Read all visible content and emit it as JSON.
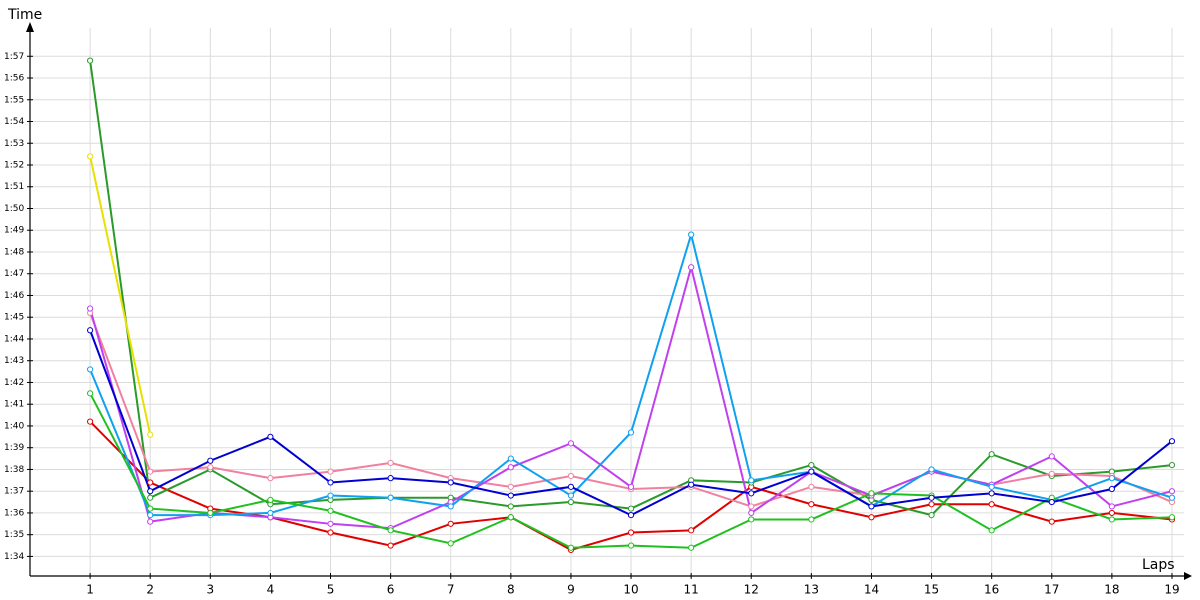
{
  "chart_data": {
    "type": "line",
    "xlabel": "Laps",
    "ylabel": "Time",
    "x": [
      1,
      2,
      3,
      4,
      5,
      6,
      7,
      8,
      9,
      10,
      11,
      12,
      13,
      14,
      15,
      16,
      17,
      18,
      19
    ],
    "xlim": [
      0,
      19.2
    ],
    "xticks": [
      1,
      2,
      3,
      4,
      5,
      6,
      7,
      8,
      9,
      10,
      11,
      12,
      13,
      14,
      15,
      16,
      17,
      18,
      19
    ],
    "ylim": [
      93.1,
      118.3
    ],
    "yticks": [
      {
        "value": 94,
        "label": "1:34"
      },
      {
        "value": 95,
        "label": "1:35"
      },
      {
        "value": 96,
        "label": "1:36"
      },
      {
        "value": 97,
        "label": "1:37"
      },
      {
        "value": 98,
        "label": "1:38"
      },
      {
        "value": 99,
        "label": "1:39"
      },
      {
        "value": 100,
        "label": "1:40"
      },
      {
        "value": 101,
        "label": "1:41"
      },
      {
        "value": 102,
        "label": "1:42"
      },
      {
        "value": 103,
        "label": "1:43"
      },
      {
        "value": 104,
        "label": "1:44"
      },
      {
        "value": 105,
        "label": "1:45"
      },
      {
        "value": 106,
        "label": "1:46"
      },
      {
        "value": 107,
        "label": "1:47"
      },
      {
        "value": 108,
        "label": "1:48"
      },
      {
        "value": 109,
        "label": "1:49"
      },
      {
        "value": 110,
        "label": "1:50"
      },
      {
        "value": 111,
        "label": "1:51"
      },
      {
        "value": 112,
        "label": "1:52"
      },
      {
        "value": 113,
        "label": "1:53"
      },
      {
        "value": 114,
        "label": "1:54"
      },
      {
        "value": 115,
        "label": "1:55"
      },
      {
        "value": 116,
        "label": "1:56"
      },
      {
        "value": 117,
        "label": "1:57"
      }
    ],
    "grid": true,
    "series": [
      {
        "color": "#e00000",
        "values": [
          100.2,
          97.4,
          96.2,
          95.8,
          95.1,
          94.5,
          95.5,
          95.8,
          94.3,
          95.1,
          95.2,
          97.2,
          96.4,
          95.8,
          96.4,
          96.4,
          95.6,
          96.0,
          95.7
        ]
      },
      {
        "color": "#2a9a2a",
        "values": [
          116.8,
          96.7,
          98.0,
          96.4,
          96.6,
          96.7,
          96.7,
          96.3,
          96.5,
          96.2,
          97.5,
          97.4,
          98.2,
          96.6,
          95.9,
          98.7,
          97.7,
          97.9,
          98.2
        ]
      },
      {
        "color": "#e8e000",
        "values": [
          112.4,
          99.6,
          null,
          null,
          null,
          null,
          null,
          null,
          null,
          null,
          null,
          null,
          null,
          null,
          null,
          null,
          null,
          null,
          null
        ]
      },
      {
        "color": "#f080a0",
        "values": [
          105.2,
          97.9,
          98.1,
          97.6,
          97.9,
          98.3,
          97.6,
          97.2,
          97.7,
          97.1,
          97.2,
          96.3,
          97.2,
          96.8,
          97.9,
          97.3,
          97.8,
          97.7,
          96.5
        ]
      },
      {
        "color": "#c040f0",
        "values": [
          105.4,
          95.6,
          96.0,
          95.8,
          95.5,
          95.3,
          96.5,
          98.1,
          99.2,
          97.2,
          107.3,
          96.0,
          97.9,
          96.8,
          97.9,
          97.3,
          98.6,
          96.3,
          97.0
        ]
      },
      {
        "color": "#10a0f0",
        "values": [
          102.6,
          95.9,
          95.9,
          96.0,
          96.8,
          96.7,
          96.3,
          98.5,
          96.8,
          99.7,
          108.8,
          97.5,
          97.9,
          96.3,
          98.0,
          97.2,
          96.6,
          97.6,
          96.7
        ]
      },
      {
        "color": "#20c020",
        "values": [
          101.5,
          96.2,
          96.0,
          96.6,
          96.1,
          95.2,
          94.6,
          95.8,
          94.4,
          94.5,
          94.4,
          95.7,
          95.7,
          96.9,
          96.8,
          95.2,
          96.7,
          95.7,
          95.8
        ]
      },
      {
        "color": "#0000d0",
        "values": [
          104.4,
          97.0,
          98.4,
          99.5,
          97.4,
          97.6,
          97.4,
          96.8,
          97.2,
          95.9,
          97.3,
          96.9,
          97.9,
          96.3,
          96.7,
          96.9,
          96.5,
          97.1,
          99.3
        ]
      }
    ]
  }
}
